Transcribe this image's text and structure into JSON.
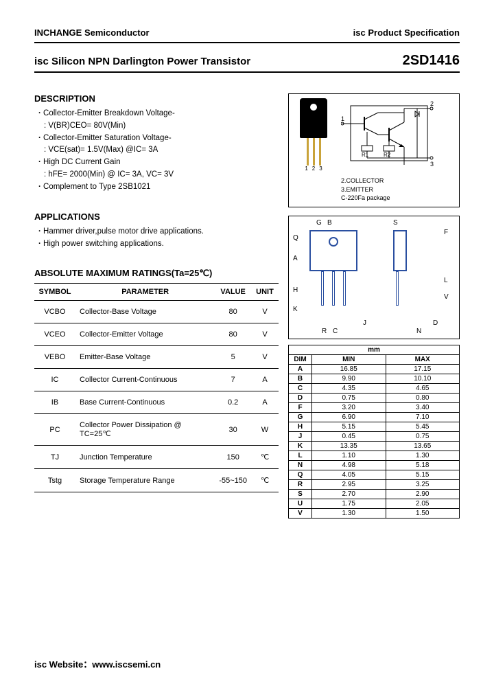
{
  "header": {
    "company": "INCHANGE Semiconductor",
    "spec": "isc Product Specification"
  },
  "title": {
    "left": "isc Silicon NPN Darlington Power Transistor",
    "right": "2SD1416"
  },
  "description": {
    "heading": "DESCRIPTION",
    "items": [
      {
        "text": "Collector-Emitter Breakdown Voltage-",
        "bullet": true
      },
      {
        "text": "V(BR)CEO= 80V(Min)",
        "bullet": false
      },
      {
        "text": "Collector-Emitter Saturation Voltage-",
        "bullet": true
      },
      {
        "text": "VCE(sat)= 1.5V(Max) @IC= 3A",
        "bullet": false
      },
      {
        "text": "High DC Current Gain",
        "bullet": true
      },
      {
        "text": "hFE= 2000(Min) @ IC= 3A, VC= 3V",
        "bullet": false
      },
      {
        "text": "Complement to Type 2SB1021",
        "bullet": true
      }
    ]
  },
  "applications": {
    "heading": "APPLICATIONS",
    "items": [
      "Hammer driver,pulse motor drive applications.",
      "High power switching applications."
    ]
  },
  "ratings": {
    "heading": "ABSOLUTE MAXIMUM RATINGS(Ta=25℃)",
    "columns": [
      "SYMBOL",
      "PARAMETER",
      "VALUE",
      "UNIT"
    ],
    "rows": [
      {
        "symbol": "VCBO",
        "param": "Collector-Base Voltage",
        "value": "80",
        "unit": "V"
      },
      {
        "symbol": "VCEO",
        "param": "Collector-Emitter Voltage",
        "value": "80",
        "unit": "V"
      },
      {
        "symbol": "VEBO",
        "param": "Emitter-Base Voltage",
        "value": "5",
        "unit": "V"
      },
      {
        "symbol": "IC",
        "param": "Collector Current-Continuous",
        "value": "7",
        "unit": "A"
      },
      {
        "symbol": "IB",
        "param": "Base Current-Continuous",
        "value": "0.2",
        "unit": "A"
      },
      {
        "symbol": "PC",
        "param": "Collector Power Dissipation @ TC=25℃",
        "value": "30",
        "unit": "W"
      },
      {
        "symbol": "TJ",
        "param": "Junction Temperature",
        "value": "150",
        "unit": "℃"
      },
      {
        "symbol": "Tstg",
        "param": "Storage Temperature Range",
        "value": "-55~150",
        "unit": "℃"
      }
    ]
  },
  "package": {
    "pins": [
      "1",
      "2",
      "3"
    ],
    "notes": [
      "2.COLLECTOR",
      "3.EMITTER",
      "C-220Fa package"
    ],
    "schem_labels": {
      "base": "1",
      "collector": "2",
      "emitter": "3",
      "r1": "R1",
      "r2": "R2"
    }
  },
  "dim_drawing": {
    "labels": [
      "B",
      "G",
      "S",
      "F",
      "A",
      "H",
      "K",
      "R",
      "C",
      "J",
      "L",
      "V",
      "D",
      "N",
      "Q"
    ]
  },
  "dimensions": {
    "unit_label": "mm",
    "columns": [
      "DIM",
      "MIN",
      "MAX"
    ],
    "rows": [
      [
        "A",
        "16.85",
        "17.15"
      ],
      [
        "B",
        "9.90",
        "10.10"
      ],
      [
        "C",
        "4.35",
        "4.65"
      ],
      [
        "D",
        "0.75",
        "0.80"
      ],
      [
        "F",
        "3.20",
        "3.40"
      ],
      [
        "G",
        "6.90",
        "7.10"
      ],
      [
        "H",
        "5.15",
        "5.45"
      ],
      [
        "J",
        "0.45",
        "0.75"
      ],
      [
        "K",
        "13.35",
        "13.65"
      ],
      [
        "L",
        "1.10",
        "1.30"
      ],
      [
        "N",
        "4.98",
        "5.18"
      ],
      [
        "Q",
        "4.05",
        "5.15"
      ],
      [
        "R",
        "2.95",
        "3.25"
      ],
      [
        "S",
        "2.70",
        "2.90"
      ],
      [
        "U",
        "1.75",
        "2.05"
      ],
      [
        "V",
        "1.30",
        "1.50"
      ]
    ]
  },
  "footer": {
    "label": "isc Website：",
    "url": "www.iscsemi.cn"
  },
  "colors": {
    "line": "#000000",
    "drawing": "#2a4fa0",
    "lead": "#c9a339"
  }
}
